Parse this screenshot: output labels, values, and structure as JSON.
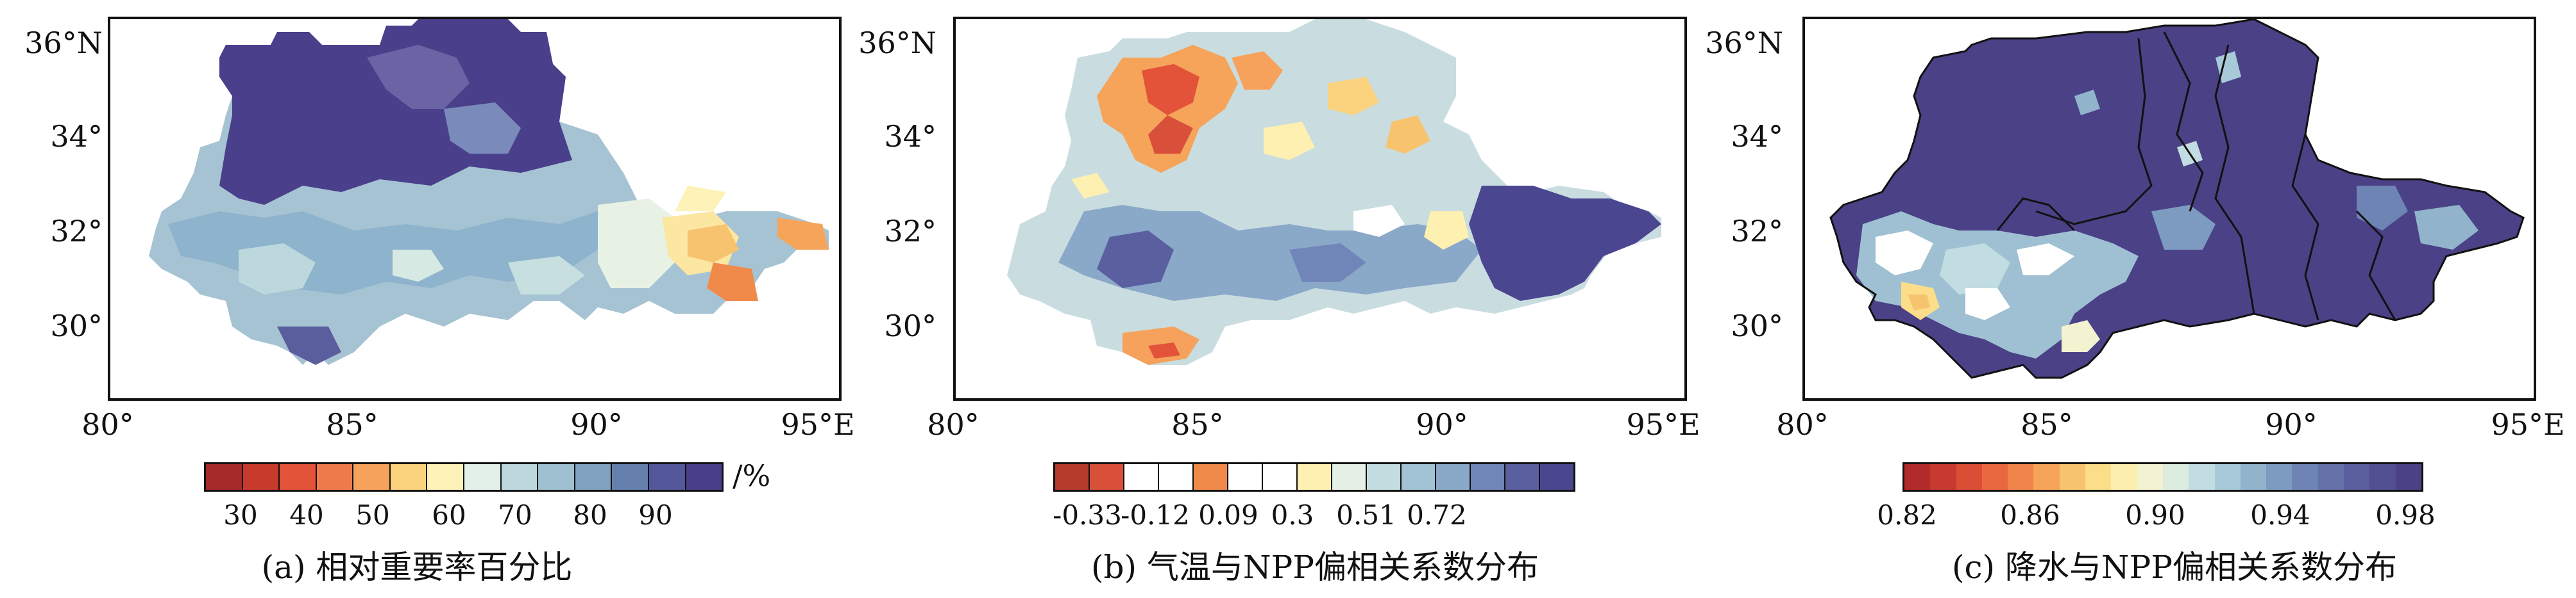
{
  "panels": [
    {
      "id": "a",
      "y_ticks": [
        "36°N",
        "34°",
        "32°",
        "30°"
      ],
      "x_ticks": [
        "80°",
        "85°",
        "90°",
        "95°E"
      ],
      "colorbar_ticks": [
        "30",
        "40",
        "50",
        "60",
        "70",
        "80",
        "90"
      ],
      "colorbar_unit": "/%",
      "colorbar_colors": [
        "#a52a2a",
        "#c83b2c",
        "#e2533a",
        "#f07b4a",
        "#f6a25c",
        "#fbd27e",
        "#fdf3b8",
        "#e3f0e8",
        "#bcd8dc",
        "#9fc0d0",
        "#7ea2c0",
        "#6580ad",
        "#54579a",
        "#4a3f8a"
      ],
      "caption": "(a) 相对重要率百分比"
    },
    {
      "id": "b",
      "y_ticks": [
        "36°N",
        "34°",
        "32°",
        "30°"
      ],
      "x_ticks": [
        "80°",
        "85°",
        "90°",
        "95°E"
      ],
      "colorbar_ticks": [
        "-0.33",
        "-0.12",
        "0.09",
        "0.3",
        "0.51",
        "0.72"
      ],
      "colorbar_colors": [
        "#b53a2c",
        "#d9503a",
        "#ffffff",
        "#ffffff",
        "#f08a4a",
        "#ffffff",
        "#ffffff",
        "#fdf0b0",
        "#e6f0e6",
        "#c4dde0",
        "#a2c3d5",
        "#8aa8c8",
        "#7186b8",
        "#5a5fa0",
        "#4b4690"
      ],
      "caption": "(b) 气温与NPP偏相关系数分布"
    },
    {
      "id": "c",
      "y_ticks": [
        "36°N",
        "34°",
        "32°",
        "30°"
      ],
      "x_ticks": [
        "80°",
        "85°",
        "90°",
        "95°E"
      ],
      "colorbar_ticks": [
        "0.82",
        "0.86",
        "0.90",
        "0.94",
        "0.98"
      ],
      "colorbar_colors": [
        "#b22b2b",
        "#c83a2f",
        "#db4e36",
        "#e8673f",
        "#f0844a",
        "#f5a45a",
        "#f8c36e",
        "#fbdd8a",
        "#fcefae",
        "#f3f3d2",
        "#dcecdf",
        "#c1dde1",
        "#a7c9d8",
        "#91b3cc",
        "#7d9bc0",
        "#6e84b4",
        "#6470a8",
        "#5a5e9c",
        "#524f92",
        "#4a4187"
      ],
      "caption": "(c) 降水与NPP偏相关系数分布"
    }
  ]
}
